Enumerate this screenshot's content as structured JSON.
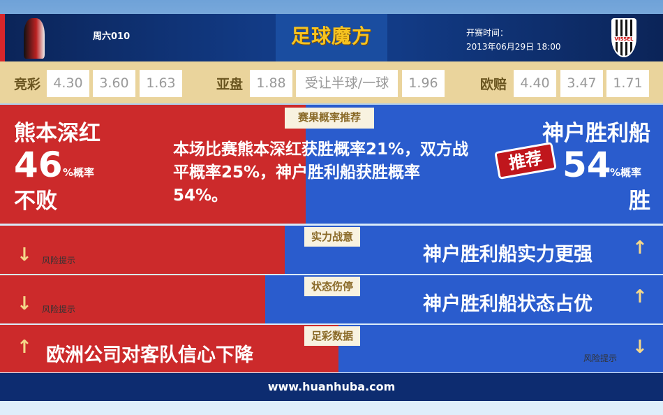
{
  "header": {
    "match_no": "周六010",
    "logo_text": "足球魔方",
    "kickoff_label": "开赛时间：",
    "kickoff_time": "2013年06月29日 18:00",
    "away_crest_text": "VISSEL"
  },
  "odds": {
    "jingcai_label": "竞彩",
    "jingcai": [
      "4.30",
      "3.60",
      "1.63"
    ],
    "asian_label": "亚盘",
    "asian": [
      "1.88",
      "受让半球/一球",
      "1.96"
    ],
    "euro_label": "欧赔",
    "euro": [
      "4.40",
      "3.47",
      "1.71"
    ]
  },
  "prediction": {
    "tab": "赛果概率推荐",
    "home_team": "熊本深红",
    "home_pct": "46",
    "pct_suffix": "%概率",
    "home_result": "不败",
    "summary": "本场比赛熊本深红获胜概率21%，双方战平概率25%，神户胜利船获胜概率54%。",
    "away_team": "神户胜利船",
    "recommend_badge": "推荐",
    "away_pct": "54",
    "away_result": "胜"
  },
  "rows": [
    {
      "tab": "实力战意",
      "left_text": "风险提示",
      "right_text": "神户胜利船实力更强"
    },
    {
      "tab": "状态伤停",
      "left_text": "风险提示",
      "right_text": "神户胜利船状态占优"
    },
    {
      "tab": "足彩数据",
      "left_text": "欧洲公司对客队信心下降",
      "right_text": "风险提示"
    }
  ],
  "footer": {
    "url": "www.huanhuba.com"
  },
  "colors": {
    "home_red": "#cc2a2b",
    "away_blue": "#2a5ccd",
    "gold": "#f6c320"
  }
}
